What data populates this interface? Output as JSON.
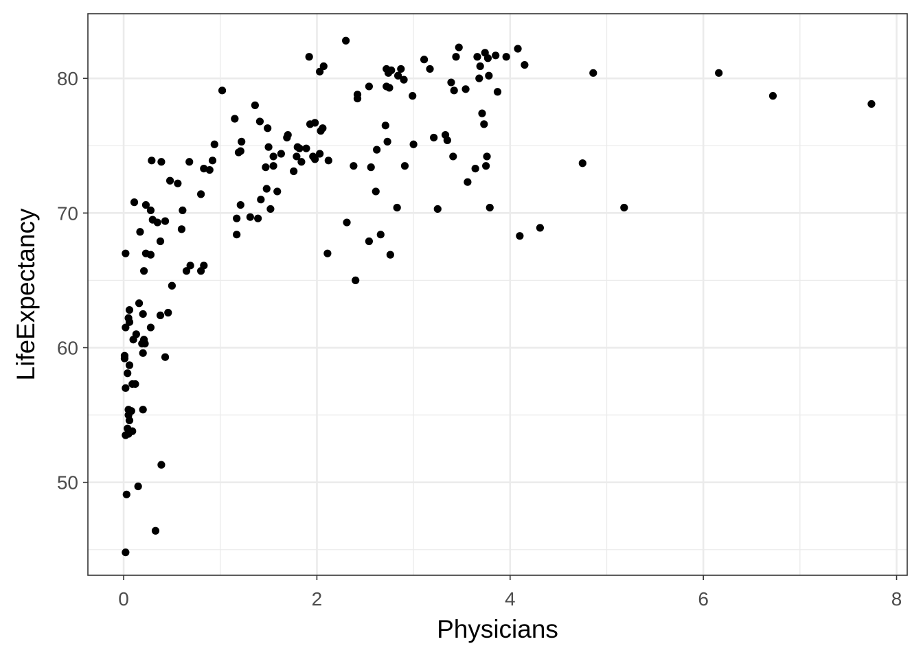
{
  "chart_data": {
    "type": "scatter",
    "title": "",
    "xlabel": "Physicians",
    "ylabel": "LifeExpectancy",
    "xlim": [
      -0.37,
      8.11
    ],
    "ylim": [
      43.1,
      84.8
    ],
    "x_ticks": [
      0,
      2,
      4,
      6,
      8
    ],
    "x_tick_labels": [
      "0",
      "2",
      "4",
      "6",
      "8"
    ],
    "y_ticks": [
      50,
      60,
      70,
      80
    ],
    "y_tick_labels": [
      "50",
      "60",
      "70",
      "80"
    ],
    "x_minor_ticks": [
      1,
      3,
      5,
      7
    ],
    "y_minor_ticks": [
      45,
      55,
      65,
      75
    ],
    "grid": true,
    "legend": "none",
    "colors": {
      "point": "#000000",
      "grid": "#ebebeb",
      "panel_border": "#333333"
    },
    "series": [
      {
        "points": [
          [
            2.3,
            82.8
          ],
          [
            1.92,
            81.6
          ],
          [
            2.07,
            80.9
          ],
          [
            2.03,
            80.5
          ],
          [
            3.47,
            82.3
          ],
          [
            4.08,
            82.2
          ],
          [
            3.74,
            81.9
          ],
          [
            3.66,
            81.6
          ],
          [
            3.44,
            81.6
          ],
          [
            3.85,
            81.7
          ],
          [
            3.96,
            81.6
          ],
          [
            3.77,
            81.5
          ],
          [
            3.11,
            81.4
          ],
          [
            4.15,
            81.0
          ],
          [
            3.69,
            80.9
          ],
          [
            3.17,
            80.7
          ],
          [
            2.87,
            80.7
          ],
          [
            2.72,
            80.7
          ],
          [
            2.77,
            80.6
          ],
          [
            2.74,
            80.4
          ],
          [
            2.84,
            80.2
          ],
          [
            3.78,
            80.2
          ],
          [
            2.9,
            79.9
          ],
          [
            3.68,
            80.0
          ],
          [
            3.39,
            79.7
          ],
          [
            2.54,
            79.4
          ],
          [
            2.72,
            79.4
          ],
          [
            2.75,
            79.3
          ],
          [
            3.54,
            79.2
          ],
          [
            3.42,
            79.1
          ],
          [
            3.87,
            79.0
          ],
          [
            1.02,
            79.1
          ],
          [
            2.42,
            78.8
          ],
          [
            2.99,
            78.7
          ],
          [
            2.42,
            78.5
          ],
          [
            4.86,
            80.4
          ],
          [
            6.16,
            80.4
          ],
          [
            6.72,
            78.7
          ],
          [
            7.74,
            78.1
          ],
          [
            1.36,
            78.0
          ],
          [
            3.71,
            77.4
          ],
          [
            1.41,
            76.8
          ],
          [
            1.15,
            77.0
          ],
          [
            3.73,
            76.6
          ],
          [
            1.93,
            76.6
          ],
          [
            1.98,
            76.7
          ],
          [
            2.71,
            76.5
          ],
          [
            1.49,
            76.3
          ],
          [
            2.06,
            76.3
          ],
          [
            2.04,
            76.1
          ],
          [
            3.33,
            75.8
          ],
          [
            1.7,
            75.8
          ],
          [
            1.69,
            75.6
          ],
          [
            3.21,
            75.6
          ],
          [
            3.35,
            75.4
          ],
          [
            2.73,
            75.3
          ],
          [
            1.22,
            75.3
          ],
          [
            3.0,
            75.1
          ],
          [
            0.94,
            75.1
          ],
          [
            1.5,
            74.9
          ],
          [
            1.8,
            74.9
          ],
          [
            1.89,
            74.8
          ],
          [
            1.82,
            74.8
          ],
          [
            2.62,
            74.7
          ],
          [
            1.21,
            74.6
          ],
          [
            1.19,
            74.5
          ],
          [
            1.63,
            74.4
          ],
          [
            2.03,
            74.4
          ],
          [
            1.55,
            74.2
          ],
          [
            1.96,
            74.2
          ],
          [
            1.79,
            74.2
          ],
          [
            3.76,
            74.2
          ],
          [
            3.41,
            74.2
          ],
          [
            1.98,
            74.0
          ],
          [
            2.12,
            73.9
          ],
          [
            0.92,
            73.9
          ],
          [
            0.29,
            73.9
          ],
          [
            0.39,
            73.8
          ],
          [
            0.68,
            73.8
          ],
          [
            1.84,
            73.8
          ],
          [
            4.75,
            73.7
          ],
          [
            1.55,
            73.5
          ],
          [
            3.75,
            73.5
          ],
          [
            2.38,
            73.5
          ],
          [
            2.91,
            73.5
          ],
          [
            1.47,
            73.4
          ],
          [
            2.56,
            73.4
          ],
          [
            0.83,
            73.3
          ],
          [
            3.64,
            73.3
          ],
          [
            0.89,
            73.2
          ],
          [
            1.76,
            73.1
          ],
          [
            0.48,
            72.4
          ],
          [
            3.56,
            72.3
          ],
          [
            0.56,
            72.2
          ],
          [
            1.48,
            71.8
          ],
          [
            1.59,
            71.6
          ],
          [
            2.61,
            71.6
          ],
          [
            0.8,
            71.4
          ],
          [
            1.42,
            71.0
          ],
          [
            0.11,
            70.8
          ],
          [
            0.23,
            70.6
          ],
          [
            1.21,
            70.6
          ],
          [
            2.83,
            70.4
          ],
          [
            3.79,
            70.4
          ],
          [
            5.18,
            70.4
          ],
          [
            1.52,
            70.3
          ],
          [
            3.25,
            70.3
          ],
          [
            0.28,
            70.2
          ],
          [
            0.61,
            70.2
          ],
          [
            1.17,
            69.6
          ],
          [
            1.39,
            69.6
          ],
          [
            1.31,
            69.7
          ],
          [
            0.3,
            69.5
          ],
          [
            0.35,
            69.3
          ],
          [
            0.43,
            69.4
          ],
          [
            2.31,
            69.3
          ],
          [
            0.17,
            68.6
          ],
          [
            0.6,
            68.8
          ],
          [
            4.31,
            68.9
          ],
          [
            1.17,
            68.4
          ],
          [
            2.66,
            68.4
          ],
          [
            4.1,
            68.3
          ],
          [
            0.38,
            67.9
          ],
          [
            2.54,
            67.9
          ],
          [
            0.02,
            67.0
          ],
          [
            0.23,
            67.0
          ],
          [
            0.28,
            66.9
          ],
          [
            2.11,
            67.0
          ],
          [
            2.76,
            66.9
          ],
          [
            0.69,
            66.1
          ],
          [
            0.83,
            66.1
          ],
          [
            0.65,
            65.7
          ],
          [
            0.8,
            65.7
          ],
          [
            0.21,
            65.7
          ],
          [
            2.4,
            65.0
          ],
          [
            0.5,
            64.6
          ],
          [
            0.16,
            63.3
          ],
          [
            0.06,
            62.8
          ],
          [
            0.2,
            62.5
          ],
          [
            0.38,
            62.4
          ],
          [
            0.46,
            62.6
          ],
          [
            0.05,
            62.2
          ],
          [
            0.06,
            61.9
          ],
          [
            0.02,
            61.5
          ],
          [
            0.28,
            61.5
          ],
          [
            0.13,
            61.0
          ],
          [
            0.1,
            60.6
          ],
          [
            0.21,
            60.6
          ],
          [
            0.19,
            60.3
          ],
          [
            0.22,
            60.3
          ],
          [
            0.2,
            59.6
          ],
          [
            0.43,
            59.3
          ],
          [
            0.01,
            59.4
          ],
          [
            0.01,
            59.2
          ],
          [
            0.06,
            58.7
          ],
          [
            0.04,
            58.1
          ],
          [
            0.09,
            57.3
          ],
          [
            0.12,
            57.3
          ],
          [
            0.02,
            57.0
          ],
          [
            0.05,
            55.4
          ],
          [
            0.08,
            55.3
          ],
          [
            0.2,
            55.4
          ],
          [
            0.05,
            55.0
          ],
          [
            0.06,
            54.6
          ],
          [
            0.04,
            54.0
          ],
          [
            0.06,
            53.8
          ],
          [
            0.09,
            53.8
          ],
          [
            0.02,
            53.5
          ],
          [
            0.05,
            53.6
          ],
          [
            0.39,
            51.3
          ],
          [
            0.15,
            49.7
          ],
          [
            0.03,
            49.1
          ],
          [
            0.33,
            46.4
          ],
          [
            0.02,
            44.8
          ]
        ]
      }
    ]
  }
}
